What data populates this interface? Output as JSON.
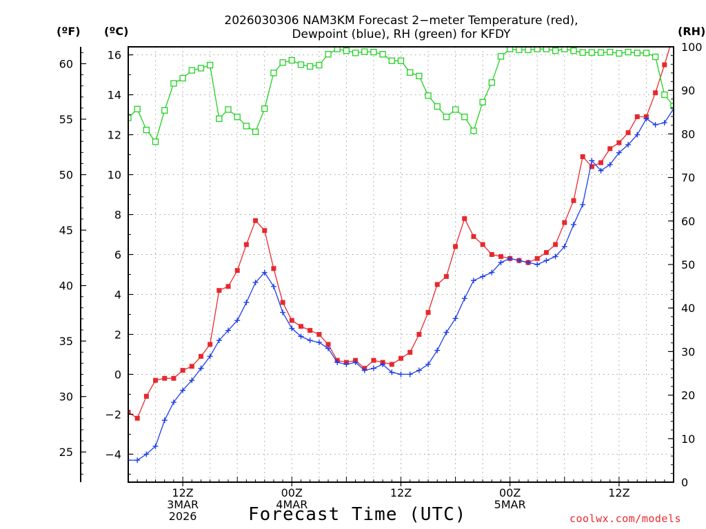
{
  "title_line1": "2026030306 NAM3KM Forecast 2−meter Temperature (red),",
  "title_line2": "Dewpoint (blue), RH (green) for KFDY",
  "unit_f": "(ºF)",
  "unit_c": "(ºC)",
  "unit_rh": "(RH)",
  "credit": "coolwx.com/models",
  "chart_data": {
    "type": "line",
    "title": "2026030306 NAM3KM Forecast 2-meter Temperature (red), Dewpoint (blue), RH (green) for KFDY",
    "xlabel": "Forecast Time (UTC)",
    "x_unit": "forecast hour",
    "x": [
      0,
      1,
      2,
      3,
      4,
      5,
      6,
      7,
      8,
      9,
      10,
      11,
      12,
      13,
      14,
      15,
      16,
      17,
      18,
      19,
      20,
      21,
      22,
      23,
      24,
      25,
      26,
      27,
      28,
      29,
      30,
      31,
      32,
      33,
      34,
      35,
      36,
      37,
      38,
      39,
      40,
      41,
      42,
      43,
      44,
      45,
      46,
      47,
      48,
      49,
      50,
      51,
      52,
      53,
      54,
      55,
      56,
      57,
      58,
      59,
      60
    ],
    "xlim": [
      0,
      60
    ],
    "x_ticks": [
      {
        "x": 6,
        "lines": [
          "12Z",
          "3MAR",
          "2026"
        ]
      },
      {
        "x": 18,
        "lines": [
          "00Z",
          "4MAR"
        ]
      },
      {
        "x": 30,
        "lines": [
          "12Z"
        ]
      },
      {
        "x": 42,
        "lines": [
          "00Z",
          "5MAR"
        ]
      },
      {
        "x": 54,
        "lines": [
          "12Z"
        ]
      }
    ],
    "axes": {
      "celsius": {
        "label": "(ºC)",
        "ylim": [
          -5.4,
          16.4
        ],
        "ticks": [
          "16",
          "14",
          "12",
          "10",
          "8",
          "6",
          "4",
          "2",
          "0",
          "−2",
          "−4"
        ]
      },
      "fahrenheit": {
        "label": "(ºF)",
        "ylim": [
          22.28,
          61.52
        ],
        "ticks": [
          "60",
          "55",
          "50",
          "45",
          "40",
          "35",
          "30",
          "25"
        ]
      },
      "rh": {
        "label": "(RH)",
        "ylim": [
          0,
          100
        ],
        "ticks": [
          "100",
          "90",
          "80",
          "70",
          "60",
          "50",
          "40",
          "30",
          "20",
          "10",
          "0"
        ]
      }
    },
    "grid": true,
    "series": [
      {
        "name": "2-meter Temperature",
        "axis": "celsius",
        "color": "#e8282d",
        "marker": "filled-square",
        "values": [
          -1.9,
          -2.2,
          -1.1,
          -0.3,
          -0.2,
          -0.2,
          0.2,
          0.4,
          0.9,
          1.5,
          4.2,
          4.4,
          5.2,
          6.5,
          7.7,
          7.2,
          5.3,
          3.6,
          2.7,
          2.4,
          2.2,
          2.0,
          1.5,
          0.7,
          0.6,
          0.7,
          0.3,
          0.7,
          0.6,
          0.5,
          0.8,
          1.1,
          2.0,
          3.1,
          4.5,
          4.9,
          6.4,
          7.8,
          6.9,
          6.5,
          6.0,
          5.9,
          5.8,
          5.7,
          5.6,
          5.8,
          6.1,
          6.5,
          7.6,
          8.7,
          10.9,
          10.4,
          10.6,
          11.3,
          11.6,
          12.1,
          12.9,
          12.9,
          14.1,
          15.5,
          17.0
        ]
      },
      {
        "name": "Dewpoint",
        "axis": "celsius",
        "color": "#1c3de8",
        "marker": "plus",
        "values": [
          -4.3,
          -4.3,
          -4.0,
          -3.6,
          -2.3,
          -1.4,
          -0.8,
          -0.3,
          0.3,
          0.9,
          1.7,
          2.2,
          2.7,
          3.6,
          4.6,
          5.1,
          4.4,
          3.1,
          2.3,
          1.9,
          1.7,
          1.6,
          1.3,
          0.6,
          0.5,
          0.6,
          0.2,
          0.3,
          0.5,
          0.1,
          0.0,
          0.0,
          0.2,
          0.5,
          1.2,
          2.1,
          2.8,
          3.8,
          4.7,
          4.9,
          5.1,
          5.6,
          5.8,
          5.7,
          5.6,
          5.5,
          5.7,
          5.9,
          6.4,
          7.5,
          8.5,
          10.7,
          10.2,
          10.5,
          11.1,
          11.5,
          12.0,
          12.8,
          12.5,
          12.6,
          13.3
        ]
      },
      {
        "name": "RH",
        "axis": "rh",
        "color": "#20d020",
        "marker": "open-square",
        "values": [
          83.7,
          85.7,
          80.9,
          78.2,
          85.4,
          91.6,
          92.8,
          94.6,
          95.1,
          95.8,
          83.5,
          85.6,
          83.9,
          81.8,
          80.5,
          85.8,
          94.0,
          96.4,
          96.9,
          95.9,
          95.5,
          95.8,
          98.3,
          99.5,
          99.1,
          98.6,
          98.9,
          98.8,
          98.3,
          96.8,
          96.8,
          94.1,
          93.3,
          88.8,
          86.3,
          83.9,
          85.6,
          83.9,
          80.7,
          87.3,
          91.8,
          97.8,
          99.5,
          99.3,
          99.3,
          99.5,
          99.5,
          99.1,
          99.5,
          99.1,
          98.7,
          98.7,
          98.7,
          98.8,
          98.5,
          98.8,
          98.6,
          98.6,
          97.7,
          89.0,
          86.4
        ]
      }
    ]
  }
}
